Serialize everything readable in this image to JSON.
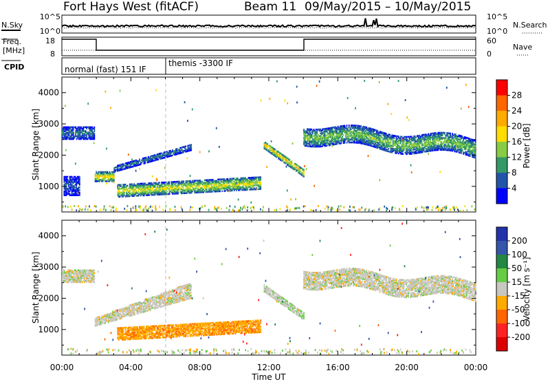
{
  "header": {
    "title": "Fort Hays West (fitACF)",
    "beam": "Beam 11",
    "date_range": "09/May/2015 – 10/May/2015"
  },
  "left_labels": {
    "nsky": "N.Sky",
    "freq_line1": "Freq.",
    "freq_line2": "[MHz]",
    "cpid": "CPID"
  },
  "right_labels": {
    "nsearch": "N.Search",
    "nave": "Nave"
  },
  "noise_panel": {
    "left_ticks": [
      "10^5",
      "10^0"
    ],
    "right_ticks": [
      "10^5",
      "10^0"
    ]
  },
  "freq_panel": {
    "left_ticks": [
      "18",
      "8"
    ],
    "right_ticks": [
      "60",
      "0"
    ]
  },
  "cpid_panel": {
    "segments": [
      {
        "label": "normal (fast) 151 IF",
        "start_h": 0
      },
      {
        "label": "themis -3300 IF",
        "start_h": 6
      }
    ]
  },
  "power_colorbar": {
    "title": "Power [dB]",
    "ticks": [
      "28",
      "24",
      "20",
      "16",
      "12",
      "8",
      "4"
    ],
    "colors": [
      "#ff0000",
      "#ff6600",
      "#ffaa00",
      "#ffdd00",
      "#88cc44",
      "#339966",
      "#2255aa",
      "#0000ff"
    ]
  },
  "velocity_colorbar": {
    "title": "Velocity [m s⁻¹]",
    "ticks": [
      "200",
      "100",
      "50",
      "15",
      "-15",
      "-50",
      "-100",
      "-200"
    ],
    "colors": [
      "#2233aa",
      "#3355aa",
      "#228844",
      "#66cc44",
      "#c8c8c0",
      "#ffaa00",
      "#ff6600",
      "#ff2222",
      "#dd0000"
    ]
  },
  "axes": {
    "xlabel": "Time UT",
    "ylabel": "Slant Range [km]",
    "xticks": [
      "00:00",
      "04:00",
      "08:00",
      "12:00",
      "16:00",
      "20:00",
      "00:00"
    ],
    "yticks": [
      "1000",
      "2000",
      "3000",
      "4000"
    ]
  },
  "chart_data": [
    {
      "type": "heatmap",
      "title": "Power [dB]",
      "xlabel": "",
      "ylabel": "Slant Range [km]",
      "xlim_hours": [
        0,
        24
      ],
      "ylim_km": [
        180,
        4500
      ],
      "features": [
        {
          "t_start": 0.0,
          "t_end": 1.9,
          "range_start": 2500,
          "range_end": 2900,
          "value_db": 8
        },
        {
          "t_start": 0.1,
          "t_end": 1.0,
          "range_start": 700,
          "range_end": 1300,
          "value_db": 6
        },
        {
          "t_start": 1.9,
          "t_end": 3.0,
          "range_start": 1150,
          "range_end": 1450,
          "value_db": 20
        },
        {
          "t_start": 3.0,
          "t_end": 7.5,
          "range_start": 1500,
          "range_end": 2500,
          "value_db": 8
        },
        {
          "t_start": 3.2,
          "t_end": 11.5,
          "range_start": 650,
          "range_end": 1250,
          "value_db": 18
        },
        {
          "t_start": 11.7,
          "t_end": 14.0,
          "range_start": 1200,
          "range_end": 2300,
          "value_db": 20
        },
        {
          "t_start": 14.0,
          "t_end": 24.0,
          "range_start": 1900,
          "range_end": 2800,
          "value_db": 14
        }
      ]
    },
    {
      "type": "heatmap",
      "title": "Velocity [m s⁻¹]",
      "xlabel": "Time UT",
      "ylabel": "Slant Range [km]",
      "xlim_hours": [
        0,
        24
      ],
      "ylim_km": [
        180,
        4500
      ],
      "features": [
        {
          "t_start": 0.0,
          "t_end": 1.9,
          "range_start": 2500,
          "range_end": 2900,
          "value_ms": 0
        },
        {
          "t_start": 1.9,
          "t_end": 7.5,
          "range_start": 1100,
          "range_end": 2500,
          "value_ms": 0
        },
        {
          "t_start": 3.2,
          "t_end": 11.5,
          "range_start": 650,
          "range_end": 1250,
          "value_ms": -40
        },
        {
          "t_start": 11.7,
          "t_end": 14.0,
          "range_start": 1100,
          "range_end": 2200,
          "value_ms": 5
        },
        {
          "t_start": 14.0,
          "t_end": 24.0,
          "range_start": 1900,
          "range_end": 2700,
          "value_ms": 0
        }
      ]
    }
  ]
}
